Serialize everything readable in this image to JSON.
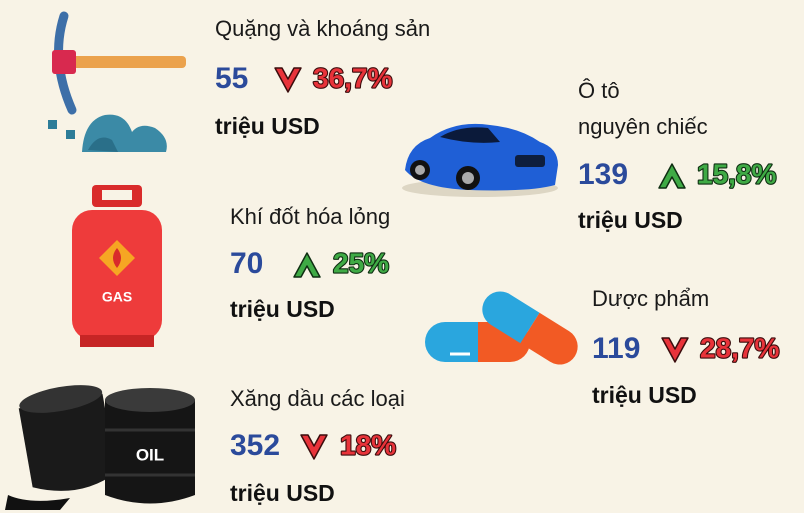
{
  "items": [
    {
      "label": [
        "Quặng và khoáng sản"
      ],
      "value": 55,
      "change": "36,7%",
      "direction": "down",
      "unit": "triệu USD"
    },
    {
      "label": [
        "Ô tô",
        "nguyên chiếc"
      ],
      "value": 139,
      "change": "15,8%",
      "direction": "up",
      "unit": "triệu USD"
    },
    {
      "label": [
        "Khí đốt hóa lỏng"
      ],
      "value": 70,
      "change": "25%",
      "direction": "up",
      "unit": "triệu USD"
    },
    {
      "label": [
        "Dược phẩm"
      ],
      "value": 119,
      "change": "28,7%",
      "direction": "down",
      "unit": "triệu USD"
    },
    {
      "label": [
        "Xăng dầu các loại"
      ],
      "value": 352,
      "change": "18%",
      "direction": "down",
      "unit": "triệu USD"
    }
  ],
  "icons": {
    "gas": "GAS",
    "oil": "OIL"
  }
}
